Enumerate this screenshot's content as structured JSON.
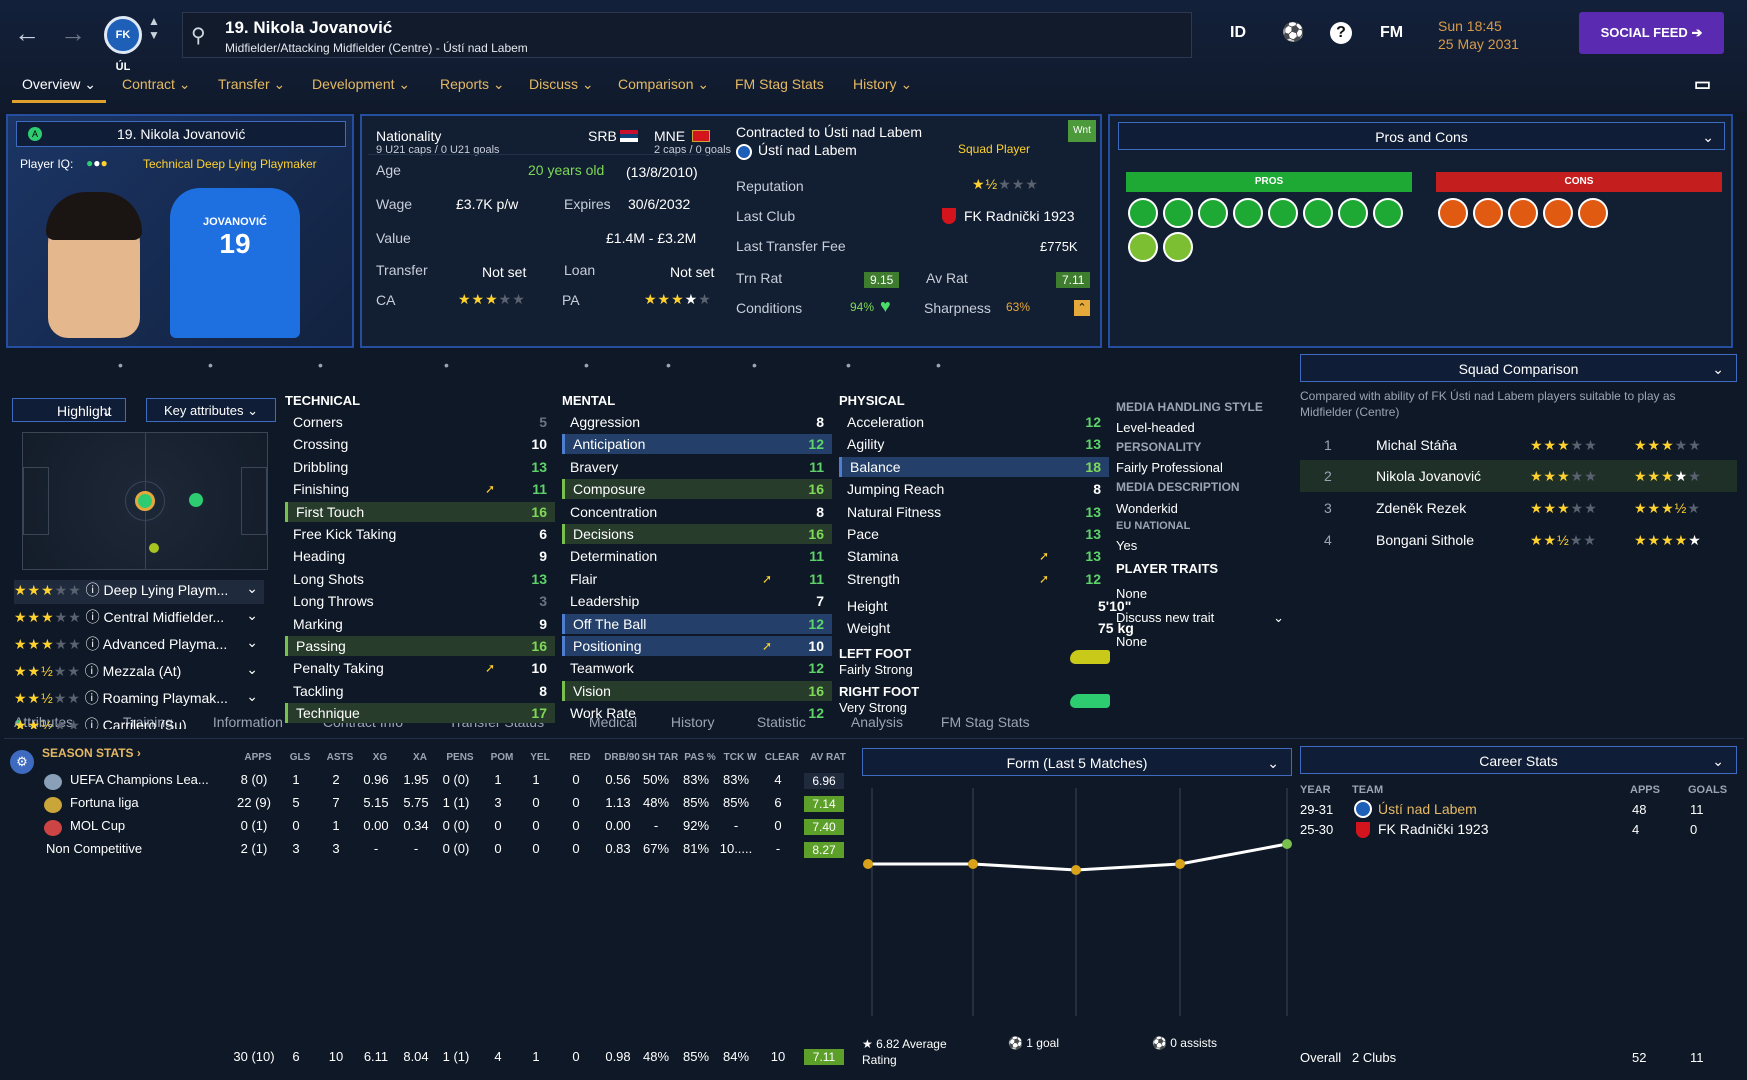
{
  "header": {
    "player_title": "19. Nikola Jovanović",
    "player_sub": "Midfielder/Attacking Midfielder (Centre) - Ústí nad Labem",
    "icons": [
      "ID",
      "FM"
    ],
    "date_line1": "Sun 18:45",
    "date_line2": "25 May 2031",
    "social": "SOCIAL FEED",
    "crest": "FK ÚL"
  },
  "menu": [
    "Overview",
    "Contract",
    "Transfer",
    "Development",
    "Reports",
    "Discuss",
    "Comparison",
    "FM Stag Stats",
    "History"
  ],
  "profile": {
    "name": "19. Nikola Jovanović",
    "iq_label": "Player IQ:",
    "role": "Technical Deep Lying Playmaker",
    "shirt_name": "JOVANOVIĆ",
    "shirt_num": "19"
  },
  "info": {
    "nat_label": "Nationality",
    "caps1": "9 U21 caps / 0 U21 goals",
    "srb": "SRB",
    "mne": "MNE",
    "caps2": "2 caps / 0 goals",
    "age_label": "Age",
    "age": "20 years old",
    "dob": "(13/8/2010)",
    "wage_label": "Wage",
    "wage": "£3.7K p/w",
    "exp_label": "Expires",
    "expires": "30/6/2032",
    "value_label": "Value",
    "value": "£1.4M - £3.2M",
    "transfer_label": "Transfer",
    "transfer": "Not set",
    "loan_label": "Loan",
    "loan": "Not set",
    "ca_label": "CA",
    "pa_label": "PA",
    "contracted": "Contracted to Ústi nad Labem",
    "club": "Ústí nad Labem",
    "squad": "Squad Player",
    "wnt": "Wnt",
    "rep_label": "Reputation",
    "lastclub_label": "Last Club",
    "lastclub": "FK Radnički 1923",
    "fee_label": "Last Transfer Fee",
    "fee": "£775K",
    "trn_label": "Trn Rat",
    "trn": "9.15",
    "av_label": "Av Rat",
    "av": "7.11",
    "cond_label": "Conditions",
    "cond": "94%",
    "sharp_label": "Sharpness",
    "sharp": "63%"
  },
  "pc": {
    "title": "Pros and Cons",
    "pros": "PROS",
    "cons": "CONS"
  },
  "tabs": [
    "Attributes",
    "Training",
    "Information",
    "Contract Info",
    "Transfer Status",
    "Medical",
    "History",
    "Statistic",
    "Analysis",
    "FM Stag Stats"
  ],
  "highlight": "Highlight",
  "key_attr": "Key attributes",
  "roles": [
    "Deep Lying Playm...",
    "Central Midfielder...",
    "Advanced Playma...",
    "Mezzala (At)",
    "Roaming Playmak...",
    "Carrilero (Su)"
  ],
  "technical": {
    "title": "TECHNICAL",
    "rows": [
      [
        "Corners",
        "5"
      ],
      [
        "Crossing",
        "10"
      ],
      [
        "Dribbling",
        "13"
      ],
      [
        "Finishing",
        "11"
      ],
      [
        "First Touch",
        "16"
      ],
      [
        "Free Kick Taking",
        "6"
      ],
      [
        "Heading",
        "9"
      ],
      [
        "Long Shots",
        "13"
      ],
      [
        "Long Throws",
        "3"
      ],
      [
        "Marking",
        "9"
      ],
      [
        "Passing",
        "16"
      ],
      [
        "Penalty Taking",
        "10"
      ],
      [
        "Tackling",
        "8"
      ],
      [
        "Technique",
        "17"
      ]
    ]
  },
  "mental": {
    "title": "MENTAL",
    "rows": [
      [
        "Aggression",
        "8"
      ],
      [
        "Anticipation",
        "12"
      ],
      [
        "Bravery",
        "11"
      ],
      [
        "Composure",
        "16"
      ],
      [
        "Concentration",
        "8"
      ],
      [
        "Decisions",
        "16"
      ],
      [
        "Determination",
        "11"
      ],
      [
        "Flair",
        "11"
      ],
      [
        "Leadership",
        "7"
      ],
      [
        "Off The Ball",
        "12"
      ],
      [
        "Positioning",
        "10"
      ],
      [
        "Teamwork",
        "12"
      ],
      [
        "Vision",
        "16"
      ],
      [
        "Work Rate",
        "12"
      ]
    ]
  },
  "physical": {
    "title": "PHYSICAL",
    "rows": [
      [
        "Acceleration",
        "12"
      ],
      [
        "Agility",
        "13"
      ],
      [
        "Balance",
        "18"
      ],
      [
        "Jumping Reach",
        "8"
      ],
      [
        "Natural Fitness",
        "13"
      ],
      [
        "Pace",
        "13"
      ],
      [
        "Stamina",
        "13"
      ],
      [
        "Strength",
        "12"
      ]
    ],
    "height_label": "Height",
    "height": "5'10\"",
    "weight_label": "Weight",
    "weight": "75 kg",
    "lf_label": "LEFT FOOT",
    "lf": "Fairly Strong",
    "rf_label": "RIGHT FOOT",
    "rf": "Very Strong"
  },
  "media": {
    "mhs_label": "MEDIA HANDLING STYLE",
    "mhs": "Level-headed",
    "pers_label": "PERSONALITY",
    "pers": "Fairly Professional",
    "md_label": "MEDIA DESCRIPTION",
    "md": "Wonderkid",
    "eu_label": "EU NATIONAL",
    "eu": "Yes",
    "traits_label": "PLAYER TRAITS",
    "traits": "None",
    "discuss": "Discuss new trait",
    "none2": "None"
  },
  "squad": {
    "title": "Squad Comparison",
    "desc": "Compared with ability of FK Ústi nad Labem players suitable to play as Midfielder (Centre)",
    "players": [
      [
        "1",
        "Michal Stáňa"
      ],
      [
        "2",
        "Nikola Jovanović"
      ],
      [
        "3",
        "Zdeněk Rezek"
      ],
      [
        "4",
        "Bongani Sithole"
      ]
    ]
  },
  "season": {
    "title": "SEASON STATS",
    "cols": [
      "APPS",
      "GLS",
      "ASTS",
      "XG",
      "XA",
      "PENS",
      "POM",
      "YEL",
      "RED",
      "DRB/90",
      "SH TAR",
      "PAS %",
      "TCK W",
      "CLEAR",
      "AV RAT"
    ],
    "rows": [
      [
        "UEFA Champions Lea...",
        "8 (0)",
        "1",
        "2",
        "0.96",
        "1.95",
        "0 (0)",
        "1",
        "1",
        "0",
        "0.56",
        "50%",
        "83%",
        "83%",
        "4",
        "6.96"
      ],
      [
        "Fortuna liga",
        "22 (9)",
        "5",
        "7",
        "5.15",
        "5.75",
        "1 (1)",
        "3",
        "0",
        "0",
        "1.13",
        "48%",
        "85%",
        "85%",
        "6",
        "7.14"
      ],
      [
        "MOL Cup",
        "0 (1)",
        "0",
        "1",
        "0.00",
        "0.34",
        "0 (0)",
        "0",
        "0",
        "0",
        "0.00",
        "-",
        "92%",
        "-",
        "0",
        "7.40"
      ],
      [
        "Non Competitive",
        "2 (1)",
        "3",
        "3",
        "-",
        "-",
        "0 (0)",
        "0",
        "0",
        "0",
        "0.83",
        "67%",
        "81%",
        "10.....",
        "-",
        "8.27"
      ]
    ],
    "total": [
      "30 (10)",
      "6",
      "10",
      "6.11",
      "8.04",
      "1 (1)",
      "4",
      "1",
      "0",
      "0.98",
      "48%",
      "85%",
      "84%",
      "10",
      "7.11"
    ]
  },
  "form": {
    "title": "Form (Last 5 Matches)",
    "avg": "6.82 Average Rating",
    "goal": "1 goal",
    "assists": "0 assists"
  },
  "career": {
    "title": "Career Stats",
    "cols": [
      "YEAR",
      "TEAM",
      "APPS",
      "GOALS"
    ],
    "rows": [
      [
        "29-31",
        "Ústí nad Labem",
        "48",
        "11"
      ],
      [
        "25-30",
        "FK Radnički 1923",
        "4",
        "0"
      ]
    ],
    "overall": "Overall",
    "clubs": "2 Clubs",
    "tapps": "52",
    "tgoals": "11"
  }
}
